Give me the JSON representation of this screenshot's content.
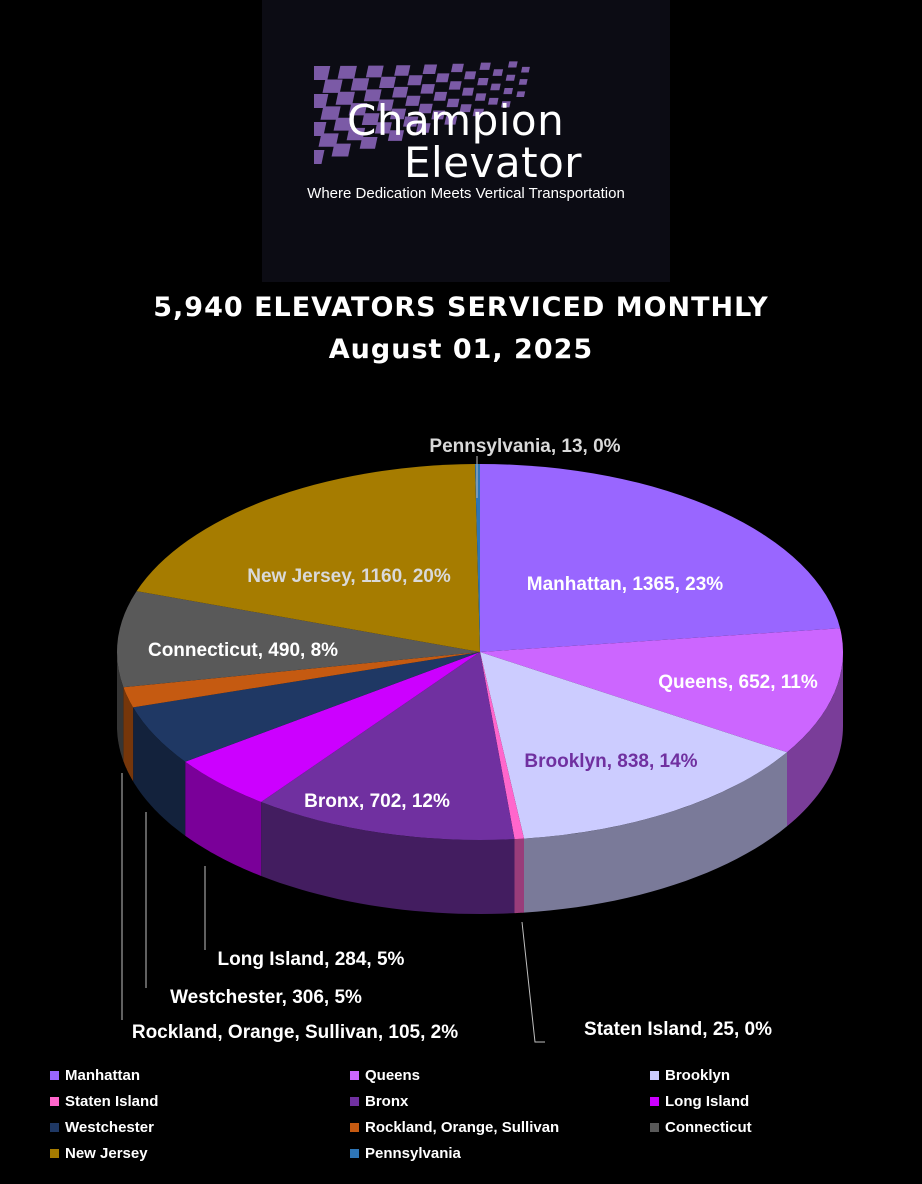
{
  "logo": {
    "line1": "Champion",
    "line2": "Elevator",
    "tagline": "Where Dedication Meets Vertical Transportation",
    "accent": "#7b5aa6"
  },
  "chart_data": {
    "type": "pie",
    "title": "5,940 ELEVATORS SERVICED MONTHLY",
    "subtitle": "August 01, 2025",
    "legend_position": "bottom",
    "slices": [
      {
        "name": "Manhattan",
        "value": 1365,
        "percent": "23%",
        "label": "Manhattan, 1365, 23%",
        "color": "#9966ff",
        "label_color": "#ffffff"
      },
      {
        "name": "Queens",
        "value": 652,
        "percent": "11%",
        "label": "Queens, 652, 11%",
        "color": "#cc66ff",
        "label_color": "#ffffff"
      },
      {
        "name": "Brooklyn",
        "value": 838,
        "percent": "14%",
        "label": "Brooklyn, 838, 14%",
        "color": "#ccccff",
        "label_color": "#7030a0"
      },
      {
        "name": "Staten Island",
        "value": 25,
        "percent": "0%",
        "label": "Staten Island, 25, 0%",
        "color": "#ff66cc",
        "label_color": "#ffffff"
      },
      {
        "name": "Bronx",
        "value": 702,
        "percent": "12%",
        "label": "Bronx, 702, 12%",
        "color": "#7030a0",
        "label_color": "#ffffff"
      },
      {
        "name": "Long Island",
        "value": 284,
        "percent": "5%",
        "label": "Long Island, 284, 5%",
        "color": "#cc00ff",
        "label_color": "#ffffff"
      },
      {
        "name": "Westchester",
        "value": 306,
        "percent": "5%",
        "label": "Westchester, 306, 5%",
        "color": "#1f3864",
        "label_color": "#ffffff"
      },
      {
        "name": "Rockland, Orange, Sullivan",
        "value": 105,
        "percent": "2%",
        "label": "Rockland, Orange, Sullivan, 105, 2%",
        "color": "#c55a11",
        "label_color": "#ffffff"
      },
      {
        "name": "Connecticut",
        "value": 490,
        "percent": "8%",
        "label": "Connecticut, 490, 8%",
        "color": "#595959",
        "label_color": "#ffffff"
      },
      {
        "name": "New Jersey",
        "value": 1160,
        "percent": "20%",
        "label": "New Jersey, 1160, 20%",
        "color": "#a67c00",
        "label_color": "#d9d9d9"
      },
      {
        "name": "Pennsylvania",
        "value": 13,
        "percent": "0%",
        "label": "Pennsylvania, 13, 0%",
        "color": "#2e75b6",
        "label_color": "#d9d9d9"
      }
    ]
  }
}
